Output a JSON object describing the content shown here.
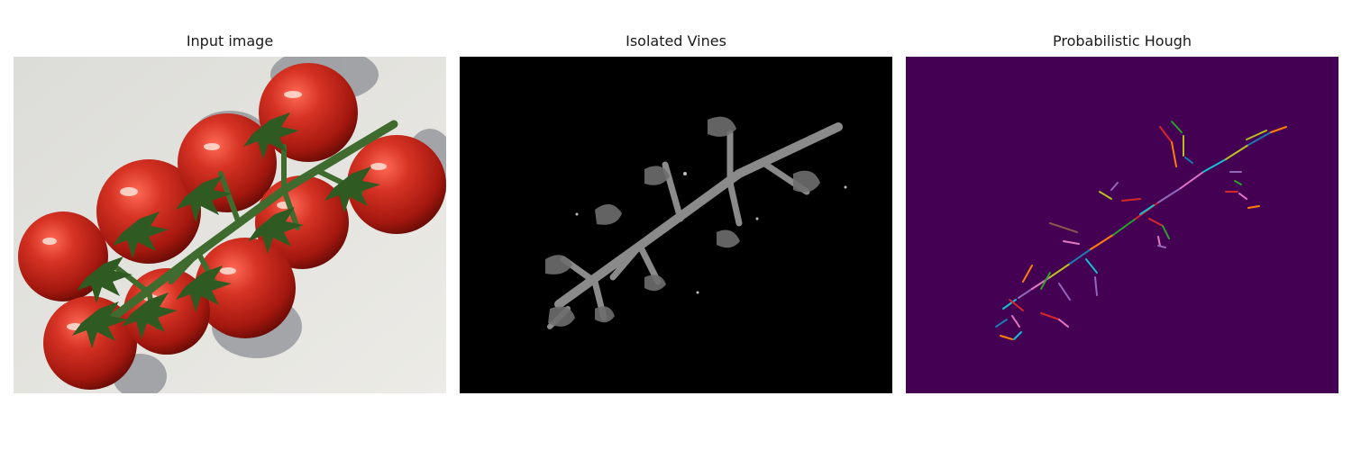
{
  "figure": {
    "panels": [
      {
        "title": "Input image",
        "content": "photo-tomatoes-on-vine"
      },
      {
        "title": "Isolated Vines",
        "content": "grayscale-vine-mask"
      },
      {
        "title": "Probabilistic Hough",
        "content": "hough-line-segments"
      }
    ]
  },
  "colors": {
    "background": "#ffffff",
    "mask_background": "#000000",
    "hough_background": "#440154",
    "tomato": "#c8281c",
    "vine_green": "#3f6b2e",
    "vine_gray": "#8a8a8a",
    "segment_palette": [
      "#1f77b4",
      "#ff7f0e",
      "#2ca02c",
      "#d62728",
      "#9467bd",
      "#8c564b",
      "#e377c2",
      "#7f7f7f",
      "#bcbd22",
      "#17becf"
    ]
  }
}
